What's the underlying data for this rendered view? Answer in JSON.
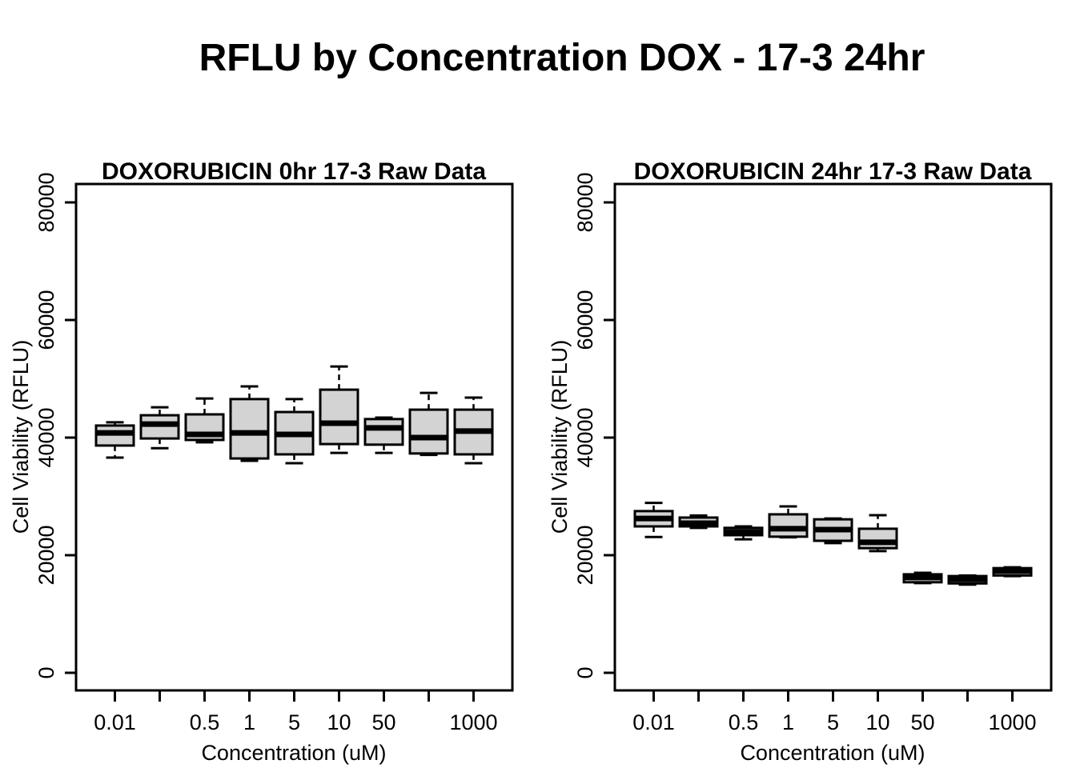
{
  "main_title": "RFLU by Concentration DOX - 17-3 24hr",
  "chart_data": [
    {
      "type": "box",
      "title": "DOXORUBICIN 0hr 17-3 Raw Data",
      "xlabel": "Concentration (uM)",
      "ylabel": "Cell Viability (RFLU)",
      "categories": [
        "0.01",
        "",
        "0.5",
        "1",
        "5",
        "10",
        "50",
        "",
        "1000"
      ],
      "ytick_values": [
        0,
        20000,
        40000,
        60000,
        80000
      ],
      "ytick_labels": [
        "0",
        "20000",
        "40000",
        "60000",
        "80000"
      ],
      "ylim": [
        -3000,
        83000
      ],
      "grid": false,
      "box_fill": "#d3d3d3",
      "box_stroke": "#000000",
      "boxes": [
        {
          "min": 36600,
          "q1": 38650,
          "median": 40800,
          "q3": 42050,
          "max": 42600
        },
        {
          "min": 38200,
          "q1": 39850,
          "median": 42300,
          "q3": 43800,
          "max": 45150
        },
        {
          "min": 39200,
          "q1": 39600,
          "median": 40550,
          "q3": 43950,
          "max": 46650
        },
        {
          "min": 36050,
          "q1": 36450,
          "median": 40800,
          "q3": 46550,
          "max": 48700
        },
        {
          "min": 35650,
          "q1": 37150,
          "median": 40550,
          "q3": 44350,
          "max": 46550
        },
        {
          "min": 37400,
          "q1": 38900,
          "median": 42450,
          "q3": 48150,
          "max": 52100
        },
        {
          "min": 37400,
          "q1": 38800,
          "median": 41650,
          "q3": 43150,
          "max": 43400
        },
        {
          "min": 37050,
          "q1": 37300,
          "median": 40000,
          "q3": 44750,
          "max": 47600
        },
        {
          "min": 35650,
          "q1": 37150,
          "median": 41100,
          "q3": 44750,
          "max": 46800
        }
      ]
    },
    {
      "type": "box",
      "title": "DOXORUBICIN 24hr 17-3 Raw Data",
      "xlabel": "Concentration (uM)",
      "ylabel": "Cell Viability (RFLU)",
      "categories": [
        "0.01",
        "",
        "0.5",
        "1",
        "5",
        "10",
        "50",
        "",
        "1000"
      ],
      "ytick_values": [
        0,
        20000,
        40000,
        60000,
        80000
      ],
      "ytick_labels": [
        "0",
        "20000",
        "40000",
        "60000",
        "80000"
      ],
      "ylim": [
        -3000,
        83000
      ],
      "grid": false,
      "box_fill": "#d3d3d3",
      "box_stroke": "#000000",
      "boxes": [
        {
          "min": 23100,
          "q1": 24900,
          "median": 26250,
          "q3": 27500,
          "max": 28900
        },
        {
          "min": 24650,
          "q1": 24900,
          "median": 25450,
          "q3": 26400,
          "max": 26750
        },
        {
          "min": 22700,
          "q1": 23400,
          "median": 23950,
          "q3": 24650,
          "max": 24900
        },
        {
          "min": 23050,
          "q1": 23150,
          "median": 24500,
          "q3": 26950,
          "max": 28300
        },
        {
          "min": 22050,
          "q1": 22450,
          "median": 24350,
          "q3": 26100,
          "max": 26250
        },
        {
          "min": 20700,
          "q1": 21200,
          "median": 22200,
          "q3": 24500,
          "max": 26800
        },
        {
          "min": 15250,
          "q1": 15400,
          "median": 16200,
          "q3": 16750,
          "max": 17000
        },
        {
          "min": 15000,
          "q1": 15200,
          "median": 15900,
          "q3": 16450,
          "max": 16550
        },
        {
          "min": 16450,
          "q1": 16550,
          "median": 17300,
          "q3": 17800,
          "max": 17950
        }
      ]
    }
  ]
}
